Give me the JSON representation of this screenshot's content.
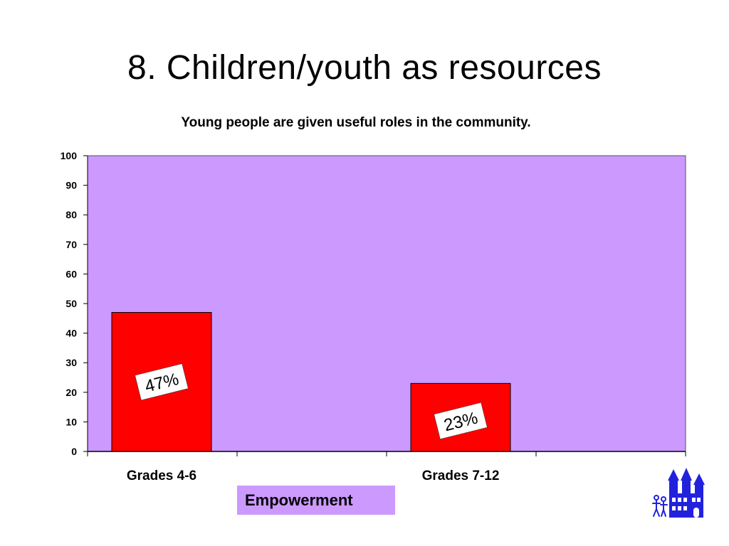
{
  "slide": {
    "title": "8. Children/youth as resources",
    "footer_label": "Empowerment"
  },
  "colors": {
    "plot_background": "#cc99ff",
    "bar_fill": "#ff0000",
    "label_box": "#ffffff",
    "logo": "#2222dd"
  },
  "chart_data": {
    "type": "bar",
    "title": "Young people are given useful roles in the community.",
    "categories": [
      "Grades 4-6",
      "Grades 7-12"
    ],
    "values": [
      47,
      23
    ],
    "data_labels": [
      "47%",
      "23%"
    ],
    "ylim": [
      0,
      100
    ],
    "yticks": [
      "0",
      "10",
      "20",
      "30",
      "40",
      "50",
      "60",
      "70",
      "80",
      "90",
      "100"
    ],
    "xlabel": "",
    "ylabel": "",
    "grid": false,
    "legend": "none"
  }
}
